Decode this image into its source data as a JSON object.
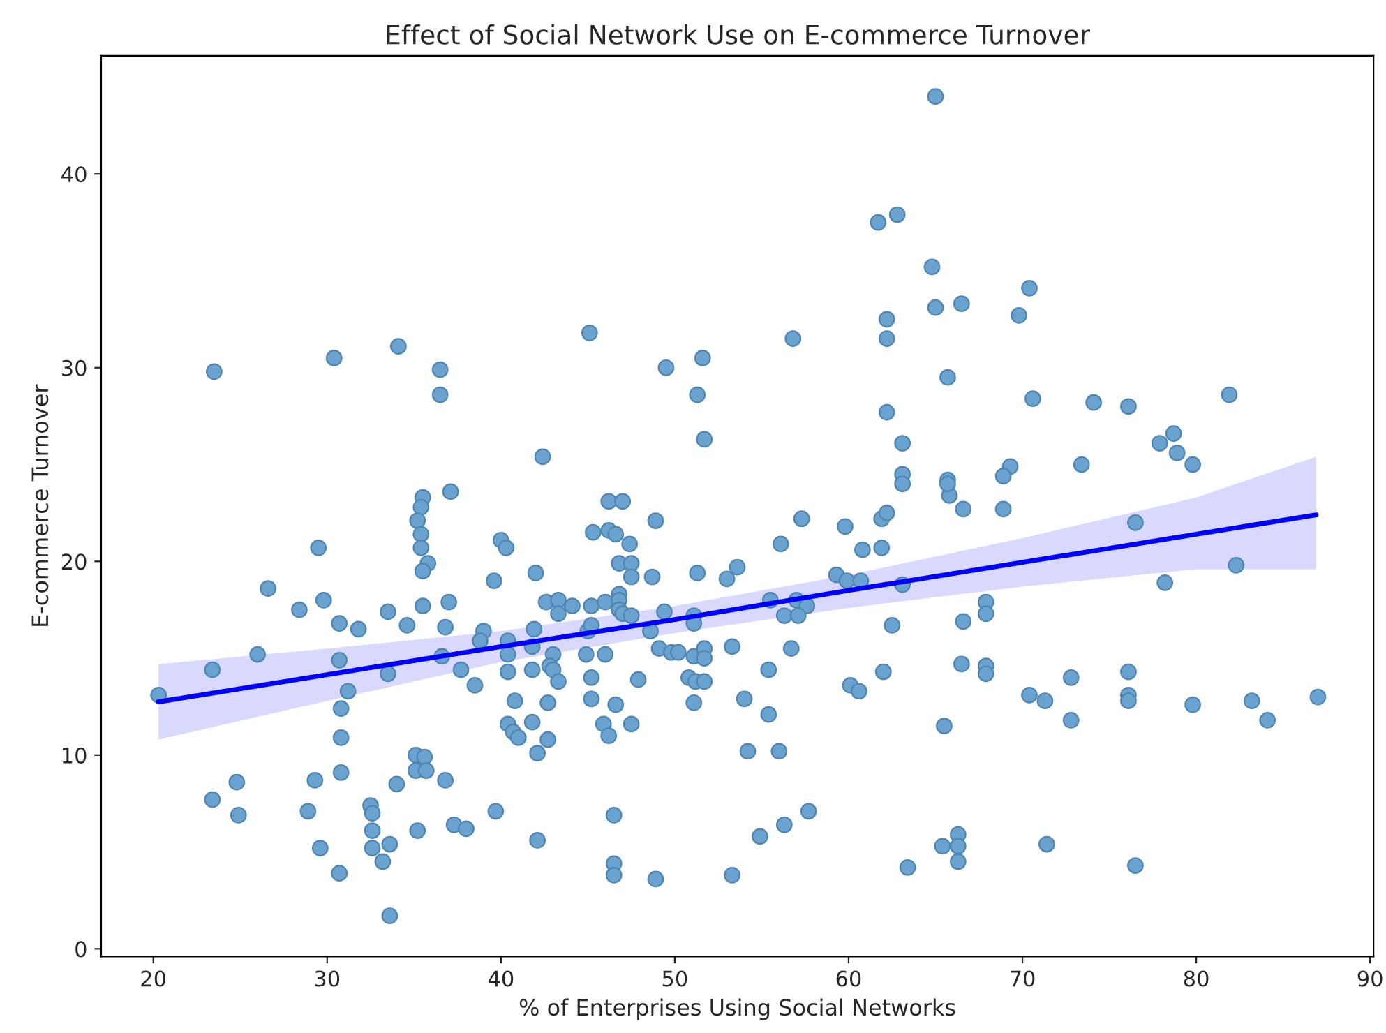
{
  "chart_data": {
    "type": "scatter",
    "title": "Effect of Social Network Use on E-commerce Turnover",
    "xlabel": "% of Enterprises Using Social Networks",
    "ylabel": "E-commerce Turnover",
    "xlim": [
      17.0,
      90.2
    ],
    "ylim": [
      -0.4,
      46.1
    ],
    "xticks": [
      20,
      30,
      40,
      50,
      60,
      70,
      80,
      90
    ],
    "yticks": [
      0,
      10,
      20,
      30,
      40
    ],
    "grid": false,
    "legend": false,
    "series": [
      {
        "marker": "circle",
        "color": "#6aa3cf",
        "x": [
          20.3,
          23.4,
          23.4,
          24.8,
          24.9,
          26.0,
          26.6,
          28.4,
          29.5,
          29.8,
          29.3,
          28.9,
          29.6,
          30.7,
          31.8,
          30.7,
          31.2,
          30.8,
          30.8,
          30.8,
          30.7,
          33.5,
          33.5,
          34.6,
          34.0,
          32.5,
          32.6,
          32.6,
          32.6,
          33.6,
          33.2,
          33.6,
          35.1,
          35.6,
          35.1,
          35.7,
          35.2,
          36.8,
          35.5,
          35.4,
          35.2,
          35.4,
          35.4,
          35.8,
          35.5,
          35.5,
          37.1,
          37.0,
          36.8,
          36.6,
          37.7,
          38.5,
          39.0,
          38.8,
          37.3,
          38.0,
          39.7,
          42.1,
          40.0,
          40.3,
          39.6,
          42.0,
          40.4,
          40.4,
          40.4,
          40.8,
          40.4,
          40.7,
          41.0,
          41.8,
          42.1,
          42.7,
          42.7,
          41.8,
          41.8,
          41.9,
          42.6,
          23.5,
          30.4,
          34.1,
          36.5,
          36.5,
          42.4,
          65.0,
          61.7,
          62.8,
          64.8,
          65.0,
          66.5,
          62.2,
          62.2,
          65.7,
          56.8,
          45.1,
          49.5,
          51.6,
          51.3,
          51.7,
          62.2,
          63.1,
          63.1,
          65.7,
          70.4,
          69.8,
          70.6,
          74.1,
          76.1,
          81.9,
          77.9,
          78.7,
          78.9,
          79.8,
          73.4,
          69.3,
          68.9,
          65.8,
          66.6,
          68.9,
          76.5,
          82.3,
          78.2,
          67.9,
          67.9,
          66.6,
          66.5,
          67.9,
          67.9,
          70.4,
          71.3,
          72.8,
          72.8,
          76.1,
          76.1,
          76.1,
          79.8,
          83.2,
          84.1,
          87.0,
          66.3,
          66.3,
          66.3,
          71.4,
          76.5,
          46.2,
          47.0,
          45.3,
          46.2,
          46.6,
          47.4,
          48.9,
          46.8,
          47.5,
          47.5,
          48.7,
          51.3,
          53.0,
          53.6,
          56.1,
          57.3,
          59.8,
          60.8,
          61.9,
          61.9,
          62.2,
          63.1,
          65.7,
          59.3,
          59.9,
          60.7,
          63.1,
          62.5,
          62.0,
          60.1,
          60.6,
          65.5,
          55.5,
          57.0,
          57.6,
          56.3,
          57.1,
          56.7,
          55.4,
          53.3,
          54.0,
          55.4,
          54.2,
          56.0,
          57.7,
          56.3,
          54.9,
          53.3,
          63.4,
          65.4,
          46.5,
          46.5,
          46.5,
          48.9,
          43.3,
          43.3,
          44.1,
          45.2,
          46.0,
          46.8,
          46.8,
          46.8,
          47.0,
          47.5,
          49.4,
          51.1,
          51.1,
          48.6,
          45.0,
          45.2,
          43.0,
          42.8,
          43.0,
          43.3,
          44.9,
          46.0,
          45.2,
          45.2,
          46.6,
          47.9,
          45.9,
          46.2,
          47.5,
          49.1,
          49.8,
          50.2,
          51.1,
          51.7,
          51.7,
          50.8,
          51.2,
          51.7,
          51.1
        ],
        "values": [
          13.1,
          14.4,
          7.7,
          8.6,
          6.9,
          15.2,
          18.6,
          17.5,
          20.7,
          18.0,
          8.7,
          7.1,
          5.2,
          16.8,
          16.5,
          14.9,
          13.3,
          12.4,
          10.9,
          9.1,
          3.9,
          17.4,
          14.2,
          16.7,
          8.5,
          7.4,
          7.0,
          6.1,
          5.2,
          5.4,
          4.5,
          1.7,
          10.0,
          9.9,
          9.2,
          9.2,
          6.1,
          8.7,
          23.3,
          22.8,
          22.1,
          21.4,
          20.7,
          19.9,
          19.5,
          17.7,
          23.6,
          17.9,
          16.6,
          15.1,
          14.4,
          13.6,
          16.4,
          15.9,
          6.4,
          6.2,
          7.1,
          5.6,
          21.1,
          20.7,
          19.0,
          19.4,
          15.9,
          15.2,
          14.3,
          12.8,
          11.6,
          11.2,
          10.9,
          11.7,
          10.1,
          10.8,
          12.7,
          14.4,
          15.6,
          16.5,
          17.9,
          29.8,
          30.5,
          31.1,
          29.9,
          28.6,
          25.4,
          44.0,
          37.5,
          37.9,
          35.2,
          33.1,
          33.3,
          32.5,
          31.5,
          29.5,
          31.5,
          31.8,
          30.0,
          30.5,
          28.6,
          26.3,
          27.7,
          26.1,
          24.5,
          24.2,
          34.1,
          32.7,
          28.4,
          28.2,
          28.0,
          28.6,
          26.1,
          26.6,
          25.6,
          25.0,
          25.0,
          24.9,
          24.4,
          23.4,
          22.7,
          22.7,
          22.0,
          19.8,
          18.9,
          17.9,
          17.3,
          16.9,
          14.7,
          14.6,
          14.2,
          13.1,
          12.8,
          14.0,
          11.8,
          14.3,
          13.1,
          12.8,
          12.6,
          12.8,
          11.8,
          13.0,
          5.9,
          5.3,
          4.5,
          5.4,
          4.3,
          23.1,
          23.1,
          21.5,
          21.6,
          21.4,
          20.9,
          22.1,
          19.9,
          19.9,
          19.2,
          19.2,
          19.4,
          19.1,
          19.7,
          20.9,
          22.2,
          21.8,
          20.6,
          20.7,
          22.2,
          22.5,
          24.0,
          24.0,
          19.3,
          19.0,
          19.0,
          18.8,
          16.7,
          14.3,
          13.6,
          13.3,
          11.5,
          18.0,
          18.0,
          17.7,
          17.2,
          17.2,
          15.5,
          14.4,
          15.6,
          12.9,
          12.1,
          10.2,
          10.2,
          7.1,
          6.4,
          5.8,
          3.8,
          4.2,
          5.3,
          6.9,
          4.4,
          3.8,
          3.6,
          18.0,
          17.3,
          17.7,
          17.7,
          17.9,
          18.3,
          18.0,
          17.5,
          17.3,
          17.2,
          17.4,
          17.2,
          16.8,
          16.4,
          16.4,
          16.7,
          15.2,
          14.6,
          14.4,
          13.8,
          15.2,
          15.2,
          14.0,
          12.9,
          12.6,
          13.9,
          11.6,
          11.0,
          11.6,
          15.5,
          15.3,
          15.3,
          15.1,
          15.5,
          15.0,
          14.0,
          13.8,
          13.8,
          12.7
        ]
      },
      {
        "type": "line",
        "color": "#0000ff",
        "x": [
          20.3,
          30,
          40,
          50,
          60,
          70,
          80,
          86.9
        ],
        "values": [
          12.75,
          14.15,
          15.6,
          17.0,
          18.5,
          19.95,
          21.4,
          22.4
        ],
        "lower": [
          10.8,
          12.8,
          14.8,
          16.3,
          17.6,
          18.7,
          19.6,
          19.6
        ],
        "upper": [
          14.7,
          15.5,
          16.4,
          17.7,
          19.3,
          21.2,
          23.3,
          25.4
        ]
      }
    ]
  }
}
